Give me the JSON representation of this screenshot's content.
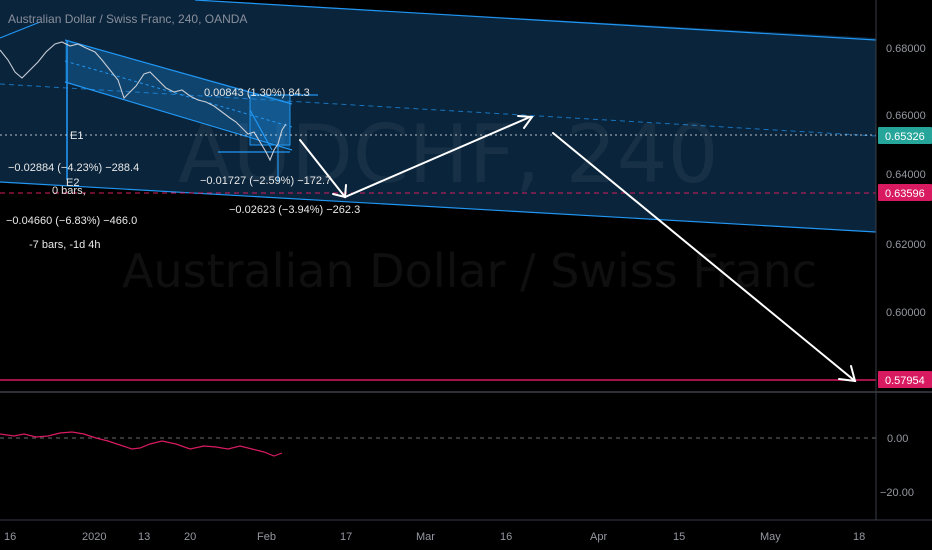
{
  "header": {
    "title": "Australian Dollar / Swiss Franc, 240, OANDA"
  },
  "watermark": {
    "symbol": "AUDCHF, 240",
    "name": "Australian Dollar / Swiss Franc"
  },
  "price_axis": {
    "ticks": [
      "0.68000",
      "0.66000",
      "0.64000",
      "0.62000",
      "0.60000"
    ],
    "labels": [
      {
        "value": "0.65326",
        "color": "#26a69a"
      },
      {
        "value": "0.63596",
        "color": "#d81b60"
      },
      {
        "value": "0.57954",
        "color": "#d81b60"
      }
    ]
  },
  "indicator_axis": {
    "ticks": [
      "0.00",
      "−20.00"
    ]
  },
  "time_axis": {
    "ticks": [
      "16",
      "2020",
      "13",
      "20",
      "Feb",
      "17",
      "Mar",
      "16",
      "Apr",
      "15",
      "May",
      "18"
    ]
  },
  "annotations": {
    "measure_a": "0.00843 (1.30%) 84.3",
    "measure_b_1": "−0.02884 (−4.23%) −288.4",
    "measure_b_2": "0 bars,",
    "measure_c_1": "−0.04660 (−6.83%) −466.0",
    "measure_c_2": "-7 bars, -1d 4h",
    "measure_d": "−0.01727 (−2.59%) −172.7",
    "measure_e": "−0.02623 (−3.94%) −262.3",
    "marker_e1": "E1",
    "marker_e2": "E2"
  },
  "colors": {
    "channel": "#2196f3",
    "channel_fill": "#0b2a45",
    "line_red": "#d81b60",
    "price_green": "#26a69a",
    "arrow": "#ffffff"
  }
}
